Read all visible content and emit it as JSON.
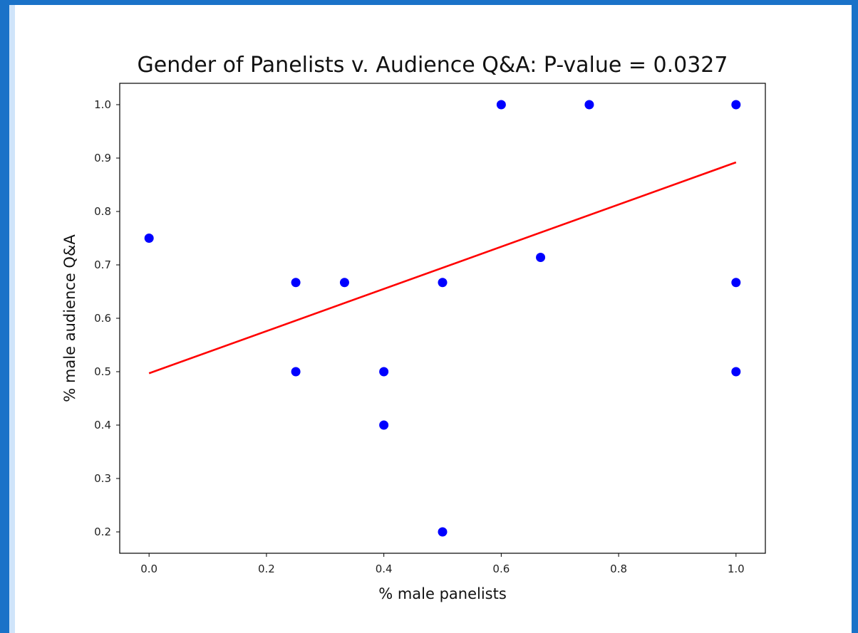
{
  "chart_data": {
    "type": "scatter",
    "title": "Gender of Panelists v. Audience Q&A: P-value = 0.0327",
    "xlabel": "% male panelists",
    "ylabel": "% male audience Q&A",
    "xlim": [
      -0.05,
      1.05
    ],
    "ylim": [
      0.16,
      1.04
    ],
    "x_ticks": [
      "0.0",
      "0.2",
      "0.4",
      "0.6",
      "0.8",
      "1.0"
    ],
    "y_ticks": [
      "0.2",
      "0.3",
      "0.4",
      "0.5",
      "0.6",
      "0.7",
      "0.8",
      "0.9",
      "1.0"
    ],
    "grid": false,
    "points": [
      {
        "x": 0.0,
        "y": 0.75
      },
      {
        "x": 0.25,
        "y": 0.667
      },
      {
        "x": 0.25,
        "y": 0.5
      },
      {
        "x": 0.333,
        "y": 0.667
      },
      {
        "x": 0.4,
        "y": 0.5
      },
      {
        "x": 0.4,
        "y": 0.4
      },
      {
        "x": 0.5,
        "y": 0.667
      },
      {
        "x": 0.5,
        "y": 0.2
      },
      {
        "x": 0.6,
        "y": 1.0
      },
      {
        "x": 0.667,
        "y": 0.714
      },
      {
        "x": 0.75,
        "y": 1.0
      },
      {
        "x": 1.0,
        "y": 1.0
      },
      {
        "x": 1.0,
        "y": 0.667
      },
      {
        "x": 1.0,
        "y": 0.5
      }
    ],
    "fit_line": {
      "x": [
        0.0,
        1.0
      ],
      "y": [
        0.497,
        0.892
      ]
    },
    "colors": {
      "points": "#0000ff",
      "fit_line": "#ff0000",
      "frame_outer": "#1a72c8",
      "frame_inner": "#cfe4fa"
    }
  }
}
